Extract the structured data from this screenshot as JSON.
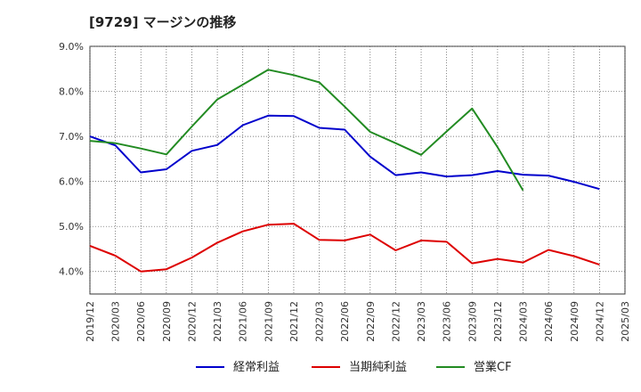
{
  "chart_data": {
    "type": "line",
    "title": "[9729]  マージンの推移",
    "x": [
      "2019/12",
      "2020/03",
      "2020/06",
      "2020/09",
      "2020/12",
      "2021/03",
      "2021/06",
      "2021/09",
      "2021/12",
      "2022/03",
      "2022/06",
      "2022/09",
      "2022/12",
      "2023/03",
      "2023/06",
      "2023/09",
      "2023/12",
      "2024/03",
      "2024/06",
      "2024/09",
      "2024/12",
      "2025/03"
    ],
    "yticks": [
      "4.0%",
      "5.0%",
      "6.0%",
      "7.0%",
      "8.0%",
      "9.0%"
    ],
    "ylim": [
      3.5,
      9.0
    ],
    "grid": true,
    "legend_position": "bottom",
    "series": [
      {
        "name": "経常利益",
        "color": "#0000cc",
        "values": [
          7.0,
          6.8,
          6.2,
          6.27,
          6.68,
          6.81,
          7.25,
          7.46,
          7.45,
          7.19,
          7.15,
          6.55,
          6.14,
          6.2,
          6.11,
          6.14,
          6.23,
          6.15,
          6.13,
          5.99,
          5.83,
          null
        ]
      },
      {
        "name": "当期純利益",
        "color": "#dd0000",
        "values": [
          4.57,
          4.35,
          4.0,
          4.05,
          4.31,
          4.64,
          4.89,
          5.04,
          5.06,
          4.7,
          4.69,
          4.82,
          4.47,
          4.69,
          4.66,
          4.18,
          4.28,
          4.2,
          4.48,
          4.34,
          4.15,
          null
        ]
      },
      {
        "name": "営業CF",
        "color": "#228b22",
        "values": [
          6.9,
          6.85,
          6.73,
          6.6,
          7.22,
          7.82,
          8.15,
          8.48,
          8.36,
          8.2,
          7.66,
          7.1,
          6.85,
          6.59,
          7.11,
          7.62,
          6.76,
          5.8,
          null,
          null,
          null,
          null
        ]
      }
    ]
  }
}
